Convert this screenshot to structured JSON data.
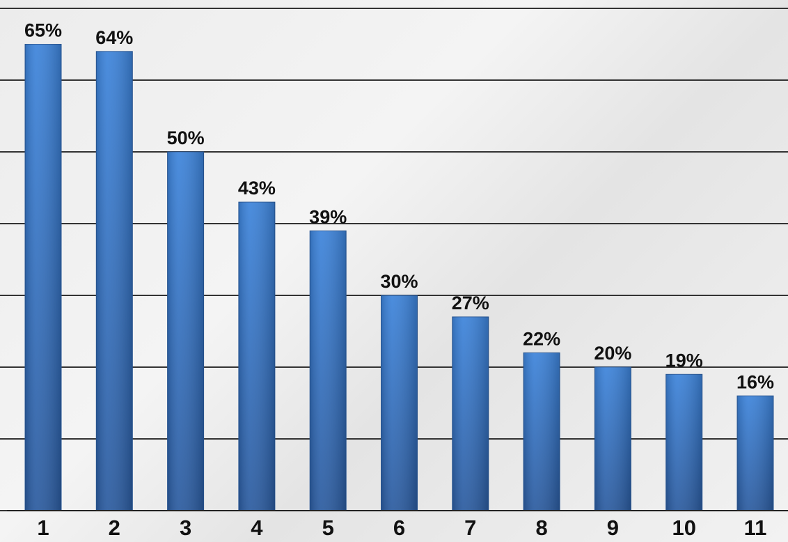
{
  "chart_data": {
    "type": "bar",
    "categories": [
      "1",
      "2",
      "3",
      "4",
      "5",
      "6",
      "7",
      "8",
      "9",
      "10",
      "11"
    ],
    "values": [
      65,
      64,
      50,
      43,
      39,
      30,
      27,
      22,
      20,
      19,
      16
    ],
    "value_labels": [
      "65%",
      "64%",
      "50%",
      "43%",
      "39%",
      "30%",
      "27%",
      "22%",
      "20%",
      "19%",
      "16%"
    ],
    "color": "#3a7fd3",
    "ylim": [
      0,
      70
    ],
    "yticks": [
      0,
      10,
      20,
      30,
      40,
      50,
      60,
      70
    ],
    "grid": true,
    "tick_labels": false
  }
}
